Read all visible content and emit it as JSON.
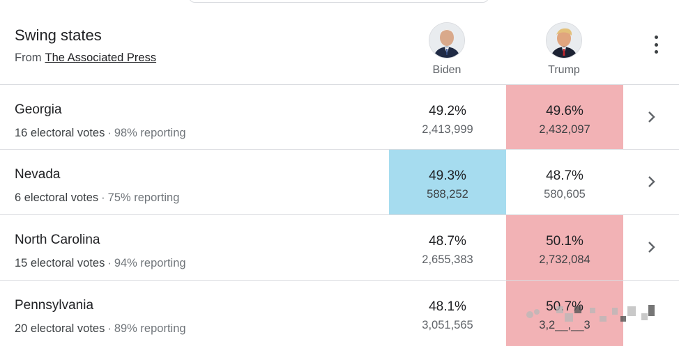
{
  "header": {
    "title": "Swing states",
    "source_prefix": "From",
    "source_link": "The Associated Press"
  },
  "candidates": {
    "biden": {
      "name": "Biden",
      "color": "#a6dcef"
    },
    "trump": {
      "name": "Trump",
      "color": "#f2b2b5"
    }
  },
  "rows": [
    {
      "state": "Georgia",
      "electoral_votes": "16 electoral votes",
      "reporting": "98% reporting",
      "biden": {
        "pct": "49.2%",
        "votes": "2,413,999"
      },
      "trump": {
        "pct": "49.6%",
        "votes": "2,432,097"
      },
      "leader": "trump"
    },
    {
      "state": "Nevada",
      "electoral_votes": "6 electoral votes",
      "reporting": "75% reporting",
      "biden": {
        "pct": "49.3%",
        "votes": "588,252"
      },
      "trump": {
        "pct": "48.7%",
        "votes": "580,605"
      },
      "leader": "biden"
    },
    {
      "state": "North Carolina",
      "electoral_votes": "15 electoral votes",
      "reporting": "94% reporting",
      "biden": {
        "pct": "48.7%",
        "votes": "2,655,383"
      },
      "trump": {
        "pct": "50.1%",
        "votes": "2,732,084"
      },
      "leader": "trump"
    },
    {
      "state": "Pennsylvania",
      "electoral_votes": "20 electoral votes",
      "reporting": "89% reporting",
      "biden": {
        "pct": "48.1%",
        "votes": "3,051,565"
      },
      "trump": {
        "pct": "50.7%",
        "votes": "3,2__,__3"
      },
      "leader": "trump"
    }
  ]
}
